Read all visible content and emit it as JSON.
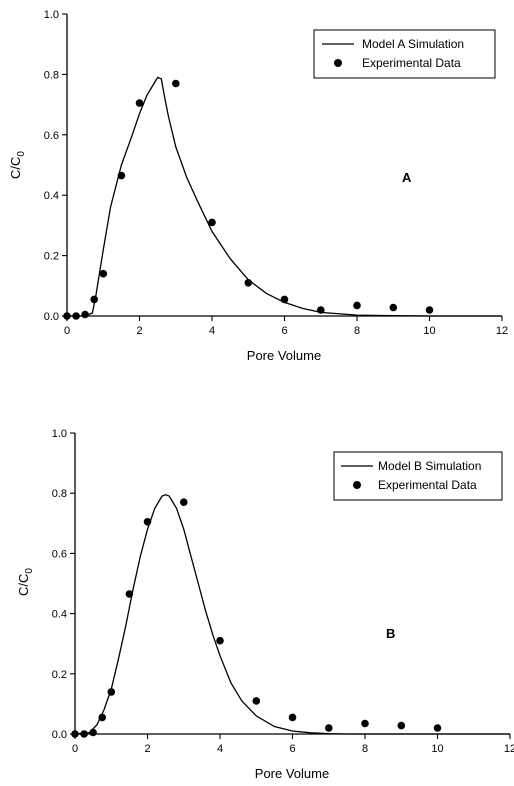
{
  "chart_data": [
    {
      "type": "line",
      "panel_label": "A",
      "xlabel": "Pore Volume",
      "ylabel_main": "C/C",
      "ylabel_sub": "0",
      "xlim": [
        0,
        12
      ],
      "ylim": [
        0,
        1.0
      ],
      "x_ticks": [
        "0",
        "2",
        "4",
        "6",
        "8",
        "10",
        "12"
      ],
      "y_ticks": [
        "0.0",
        "0.2",
        "0.4",
        "0.6",
        "0.8",
        "1.0"
      ],
      "legend_position": "top-right",
      "series": [
        {
          "name": "Model A Simulation",
          "kind": "line",
          "x": [
            0,
            0.5,
            0.7,
            0.8,
            1.0,
            1.2,
            1.5,
            1.8,
            2.0,
            2.2,
            2.4,
            2.5,
            2.6,
            2.7,
            2.8,
            3.0,
            3.3,
            3.6,
            4.0,
            4.5,
            5.0,
            5.5,
            6.0,
            6.5,
            7.0,
            8.0,
            9.0,
            10.0,
            12.0
          ],
          "y": [
            0,
            0,
            0.01,
            0.07,
            0.22,
            0.36,
            0.5,
            0.6,
            0.67,
            0.73,
            0.77,
            0.79,
            0.785,
            0.72,
            0.66,
            0.56,
            0.46,
            0.38,
            0.28,
            0.19,
            0.12,
            0.075,
            0.045,
            0.025,
            0.012,
            0.003,
            0.001,
            0,
            0
          ]
        },
        {
          "name": "Experimental Data",
          "kind": "scatter",
          "x": [
            0,
            0.25,
            0.5,
            0.75,
            1.0,
            1.5,
            2.0,
            3.0,
            4.0,
            5.0,
            6.0,
            7.0,
            8.0,
            9.0,
            10.0
          ],
          "y": [
            0,
            0,
            0.005,
            0.055,
            0.14,
            0.465,
            0.705,
            0.77,
            0.31,
            0.11,
            0.055,
            0.02,
            0.035,
            0.028,
            0.02
          ]
        }
      ]
    },
    {
      "type": "line",
      "panel_label": "B",
      "xlabel": "Pore Volume",
      "ylabel_main": "C/C",
      "ylabel_sub": "0",
      "xlim": [
        0,
        12
      ],
      "ylim": [
        0,
        1.0
      ],
      "x_ticks": [
        "0",
        "2",
        "4",
        "6",
        "8",
        "10",
        "12"
      ],
      "y_ticks": [
        "0.0",
        "0.2",
        "0.4",
        "0.6",
        "0.8",
        "1.0"
      ],
      "legend_position": "top-right",
      "series": [
        {
          "name": "Model B Simulation",
          "kind": "line",
          "x": [
            0,
            0.4,
            0.6,
            0.8,
            1.0,
            1.2,
            1.4,
            1.6,
            1.8,
            2.0,
            2.2,
            2.4,
            2.5,
            2.6,
            2.8,
            3.0,
            3.2,
            3.4,
            3.6,
            3.8,
            4.0,
            4.3,
            4.6,
            5.0,
            5.5,
            6.0,
            6.5,
            7.0,
            7.5,
            8.0,
            12.0
          ],
          "y": [
            0,
            0.005,
            0.03,
            0.08,
            0.15,
            0.25,
            0.36,
            0.48,
            0.59,
            0.68,
            0.75,
            0.79,
            0.795,
            0.79,
            0.75,
            0.68,
            0.59,
            0.5,
            0.41,
            0.33,
            0.26,
            0.17,
            0.11,
            0.06,
            0.025,
            0.01,
            0.004,
            0.001,
            0,
            0,
            0
          ]
        },
        {
          "name": "Experimental Data",
          "kind": "scatter",
          "x": [
            0,
            0.25,
            0.5,
            0.75,
            1.0,
            1.5,
            2.0,
            3.0,
            4.0,
            5.0,
            6.0,
            7.0,
            8.0,
            9.0,
            10.0
          ],
          "y": [
            0,
            0,
            0.005,
            0.055,
            0.14,
            0.465,
            0.705,
            0.77,
            0.31,
            0.11,
            0.055,
            0.02,
            0.035,
            0.028,
            0.02
          ]
        }
      ]
    }
  ]
}
